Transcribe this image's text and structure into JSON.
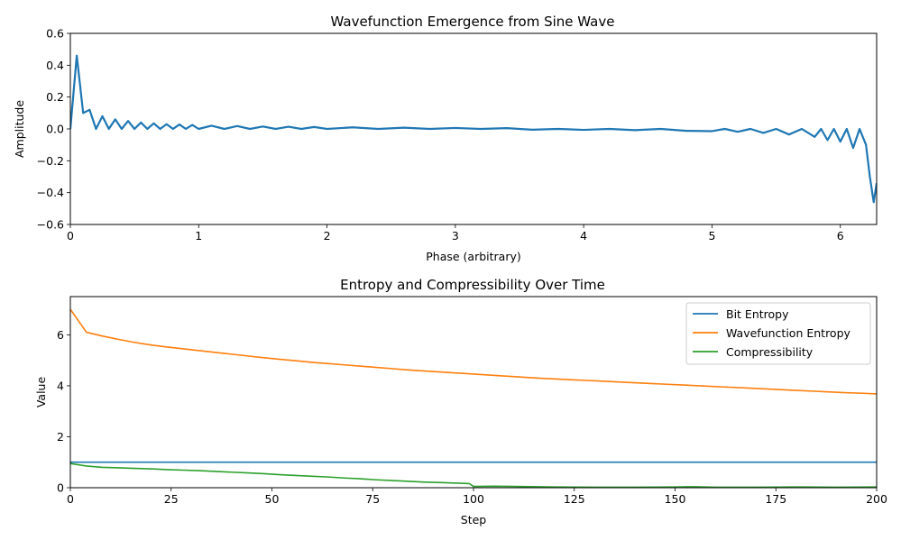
{
  "chart_data": [
    {
      "type": "line",
      "title": "Wavefunction Emergence from Sine Wave",
      "xlabel": "Phase (arbitrary)",
      "ylabel": "Amplitude",
      "xlim": [
        0,
        6.283
      ],
      "ylim": [
        -0.6,
        0.6
      ],
      "xticks": [
        0,
        1,
        2,
        3,
        4,
        5,
        6
      ],
      "yticks": [
        -0.6,
        -0.4,
        -0.2,
        0.0,
        0.2,
        0.4,
        0.6
      ],
      "ytick_labels": [
        "−0.6",
        "−0.4",
        "−0.2",
        "0.0",
        "0.2",
        "0.4",
        "0.6"
      ],
      "grid": false,
      "series": [
        {
          "color": "#1f77b4",
          "x": [
            0.0,
            0.05,
            0.1,
            0.15,
            0.2,
            0.25,
            0.3,
            0.35,
            0.4,
            0.45,
            0.5,
            0.55,
            0.6,
            0.65,
            0.7,
            0.75,
            0.8,
            0.85,
            0.9,
            0.95,
            1.0,
            1.1,
            1.2,
            1.3,
            1.4,
            1.5,
            1.6,
            1.7,
            1.8,
            1.9,
            2.0,
            2.2,
            2.4,
            2.6,
            2.8,
            3.0,
            3.2,
            3.4,
            3.6,
            3.8,
            4.0,
            4.2,
            4.4,
            4.6,
            4.8,
            5.0,
            5.1,
            5.2,
            5.3,
            5.4,
            5.5,
            5.6,
            5.7,
            5.8,
            5.85,
            5.9,
            5.95,
            6.0,
            6.05,
            6.1,
            6.15,
            6.2,
            6.23,
            6.26,
            6.283
          ],
          "y": [
            0.0,
            0.46,
            0.1,
            0.12,
            0.0,
            0.08,
            0.0,
            0.06,
            0.0,
            0.05,
            0.0,
            0.04,
            0.0,
            0.035,
            0.0,
            0.03,
            0.0,
            0.028,
            0.0,
            0.025,
            0.0,
            0.02,
            0.0,
            0.018,
            0.0,
            0.015,
            0.0,
            0.014,
            0.0,
            0.012,
            0.0,
            0.01,
            0.0,
            0.008,
            0.0,
            0.006,
            0.0,
            0.005,
            -0.005,
            0.0,
            -0.006,
            0.0,
            -0.008,
            0.0,
            -0.012,
            -0.014,
            0.0,
            -0.018,
            0.0,
            -0.025,
            0.0,
            -0.035,
            0.0,
            -0.05,
            0.0,
            -0.07,
            0.0,
            -0.08,
            0.0,
            -0.12,
            0.0,
            -0.1,
            -0.3,
            -0.46,
            -0.34
          ]
        }
      ]
    },
    {
      "type": "line",
      "title": "Entropy and Compressibility Over Time",
      "xlabel": "Step",
      "ylabel": "Value",
      "xlim": [
        0,
        200
      ],
      "ylim": [
        0,
        7.5
      ],
      "xticks": [
        0,
        25,
        50,
        75,
        100,
        125,
        150,
        175,
        200
      ],
      "yticks": [
        0,
        2,
        4,
        6
      ],
      "grid": false,
      "legend_position": "top-right",
      "series": [
        {
          "name": "Bit Entropy",
          "color": "#1f77b4",
          "x": [
            0,
            200
          ],
          "y": [
            1.0,
            1.0
          ]
        },
        {
          "name": "Wavefunction Entropy",
          "color": "#ff7f0e",
          "x": [
            0,
            4,
            8,
            12,
            16,
            20,
            24,
            28,
            32,
            36,
            40,
            44,
            48,
            52,
            56,
            60,
            64,
            68,
            72,
            76,
            80,
            84,
            88,
            92,
            96,
            100,
            104,
            108,
            112,
            116,
            120,
            124,
            128,
            132,
            136,
            140,
            144,
            148,
            152,
            156,
            160,
            164,
            168,
            172,
            176,
            180,
            184,
            188,
            192,
            196,
            200
          ],
          "y": [
            7.0,
            6.1,
            5.95,
            5.82,
            5.7,
            5.6,
            5.52,
            5.45,
            5.38,
            5.31,
            5.24,
            5.17,
            5.1,
            5.04,
            4.98,
            4.92,
            4.87,
            4.82,
            4.77,
            4.72,
            4.67,
            4.62,
            4.58,
            4.54,
            4.5,
            4.46,
            4.42,
            4.38,
            4.34,
            4.3,
            4.27,
            4.24,
            4.21,
            4.18,
            4.15,
            4.12,
            4.09,
            4.06,
            4.03,
            4.0,
            3.97,
            3.94,
            3.91,
            3.88,
            3.85,
            3.82,
            3.79,
            3.76,
            3.73,
            3.71,
            3.68
          ]
        },
        {
          "name": "Compressibility",
          "color": "#2ca02c",
          "x": [
            0,
            4,
            8,
            12,
            16,
            20,
            24,
            28,
            32,
            36,
            40,
            44,
            48,
            52,
            56,
            60,
            64,
            68,
            72,
            76,
            80,
            84,
            88,
            92,
            96,
            99,
            100,
            105,
            110,
            120,
            130,
            140,
            150,
            155,
            160,
            170,
            180,
            190,
            200
          ],
          "y": [
            0.95,
            0.85,
            0.8,
            0.78,
            0.76,
            0.74,
            0.71,
            0.69,
            0.67,
            0.64,
            0.61,
            0.58,
            0.55,
            0.51,
            0.48,
            0.45,
            0.42,
            0.38,
            0.35,
            0.31,
            0.28,
            0.25,
            0.22,
            0.2,
            0.18,
            0.16,
            0.05,
            0.06,
            0.05,
            0.03,
            0.02,
            0.02,
            0.03,
            0.04,
            0.02,
            0.02,
            0.03,
            0.02,
            0.03
          ]
        }
      ]
    }
  ]
}
